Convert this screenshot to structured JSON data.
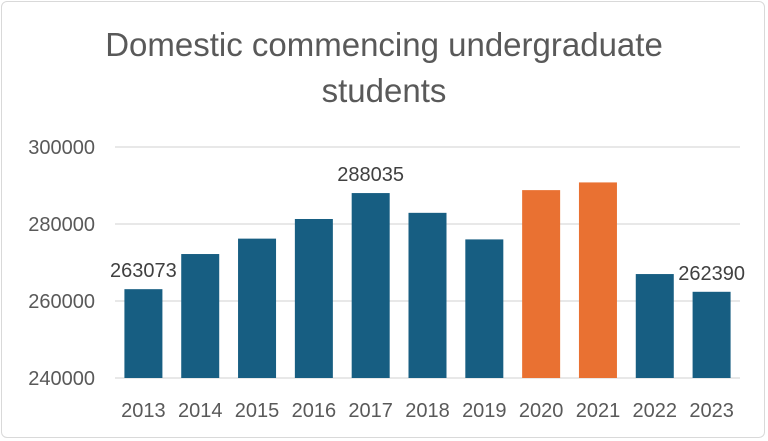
{
  "chart_data": {
    "type": "bar",
    "title_lines": [
      "Domestic commencing undergraduate",
      "students"
    ],
    "categories": [
      "2013",
      "2014",
      "2015",
      "2016",
      "2017",
      "2018",
      "2019",
      "2020",
      "2021",
      "2022",
      "2023"
    ],
    "values": [
      263073,
      272200,
      276200,
      281300,
      288035,
      282900,
      276000,
      288800,
      290800,
      267000,
      262390
    ],
    "highlight": [
      false,
      false,
      false,
      false,
      false,
      false,
      false,
      true,
      true,
      false,
      false
    ],
    "data_labels": {
      "0": "263073",
      "4": "288035",
      "10": "262390"
    },
    "ylim": [
      240000,
      300000
    ],
    "yticks": [
      "240000",
      "260000",
      "280000",
      "300000"
    ],
    "xlabel": "",
    "ylabel": "",
    "grid": true,
    "colors": {
      "primary": "#175E82",
      "highlight": "#E97132",
      "grid": "#d9d9d9",
      "text": "#595959"
    }
  }
}
